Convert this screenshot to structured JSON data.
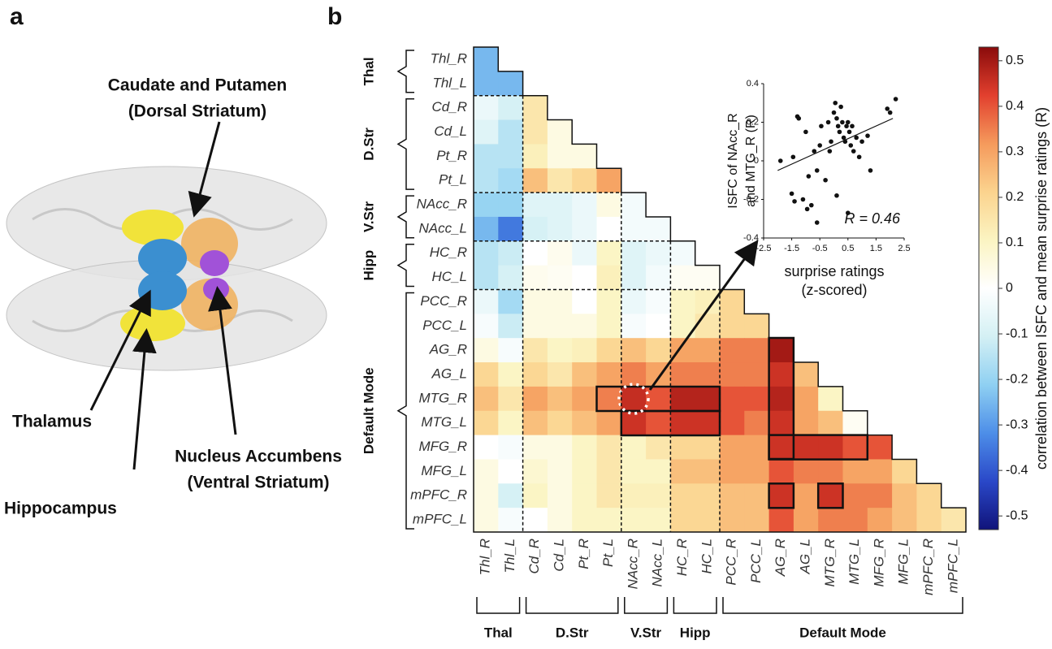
{
  "panel_labels": [
    "a",
    "b"
  ],
  "brain_labels": [
    "Caudate and Putamen",
    "(Dorsal Striatum)",
    "Thalamus",
    "Nucleus Accumbens",
    "(Ventral Striatum)",
    "Hippocampus"
  ],
  "chart_data": [
    {
      "type": "heatmap",
      "regions": [
        "Thl_R",
        "Thl_L",
        "Cd_R",
        "Cd_L",
        "Pt_R",
        "Pt_L",
        "NAcc_R",
        "NAcc_L",
        "HC_R",
        "HC_L",
        "PCC_R",
        "PCC_L",
        "AG_R",
        "AG_L",
        "MTG_R",
        "MTG_L",
        "MFG_R",
        "MFG_L",
        "mPFC_R",
        "mPFC_L"
      ],
      "groups": [
        {
          "name": "Thal",
          "count": 2
        },
        {
          "name": "D.Str",
          "count": 4
        },
        {
          "name": "V.Str",
          "count": 2
        },
        {
          "name": "Hipp",
          "count": 2
        },
        {
          "name": "Default Mode",
          "count": 10
        }
      ],
      "values": [
        [
          -0.25
        ],
        [
          -0.25,
          -0.25
        ],
        [
          -0.05,
          -0.1,
          0.15
        ],
        [
          -0.08,
          -0.15,
          0.15,
          0.05
        ],
        [
          -0.15,
          -0.15,
          0.12,
          0.05,
          0.05
        ],
        [
          -0.15,
          -0.18,
          0.25,
          0.15,
          0.2,
          0.3
        ],
        [
          -0.2,
          -0.2,
          -0.08,
          -0.08,
          -0.05,
          0.05,
          -0.03
        ],
        [
          -0.25,
          -0.35,
          -0.1,
          -0.08,
          -0.05,
          0,
          -0.03,
          -0.03
        ],
        [
          -0.15,
          -0.12,
          0,
          0.03,
          -0.05,
          0.1,
          -0.08,
          -0.05,
          -0.03
        ],
        [
          -0.15,
          -0.1,
          0.03,
          0.02,
          0,
          0.12,
          -0.08,
          -0.03,
          0.02,
          0.02
        ],
        [
          -0.05,
          -0.18,
          0.05,
          0.05,
          0,
          0.1,
          -0.05,
          -0.02,
          0.1,
          0.12,
          0.2
        ],
        [
          -0.02,
          -0.12,
          0.05,
          0.05,
          0.05,
          0.1,
          -0.02,
          0,
          0.1,
          0.15,
          0.2,
          0.2
        ],
        [
          0.05,
          -0.02,
          0.15,
          0.1,
          0.12,
          0.2,
          0.25,
          0.2,
          0.3,
          0.3,
          0.35,
          0.35,
          0.5
        ],
        [
          0.2,
          0.1,
          0.2,
          0.15,
          0.25,
          0.3,
          0.35,
          0.3,
          0.35,
          0.35,
          0.35,
          0.35,
          0.45,
          0.25
        ],
        [
          0.25,
          0.15,
          0.3,
          0.25,
          0.3,
          0.35,
          0.46,
          0.4,
          0.48,
          0.48,
          0.4,
          0.4,
          0.48,
          0.3,
          0.1
        ],
        [
          0.2,
          0.1,
          0.25,
          0.2,
          0.25,
          0.3,
          0.45,
          0.4,
          0.45,
          0.45,
          0.4,
          0.35,
          0.45,
          0.3,
          0.25,
          0.02
        ],
        [
          0,
          -0.02,
          0.05,
          0.05,
          0.1,
          0.15,
          0.1,
          0.15,
          0.2,
          0.2,
          0.3,
          0.3,
          0.45,
          0.45,
          0.45,
          0.4,
          0.4
        ],
        [
          0.05,
          0,
          0.08,
          0.05,
          0.1,
          0.15,
          0.1,
          0.1,
          0.25,
          0.25,
          0.3,
          0.3,
          0.4,
          0.35,
          0.35,
          0.3,
          0.3,
          0.2
        ],
        [
          0.05,
          -0.1,
          0.1,
          0.05,
          0.1,
          0.15,
          0.12,
          0.12,
          0.2,
          0.2,
          0.25,
          0.25,
          0.45,
          0.3,
          0.45,
          0.35,
          0.35,
          0.25,
          0.2
        ],
        [
          0.05,
          -0.02,
          0,
          0.05,
          0.1,
          0.1,
          0.1,
          0.1,
          0.2,
          0.2,
          0.25,
          0.25,
          0.4,
          0.3,
          0.35,
          0.35,
          0.3,
          0.25,
          0.2,
          0.15
        ]
      ],
      "colormap": [
        "#10137a",
        "#2a48c8",
        "#4d8ee8",
        "#8fd0f2",
        "#d4f0f4",
        "#ffffff",
        "#fbf4c2",
        "#fbd38e",
        "#f59a5c",
        "#e2402e",
        "#8a0b0b"
      ],
      "clim": [
        -0.53,
        0.53
      ],
      "cticks": [
        0.5,
        0.4,
        0.3,
        0.2,
        0.1,
        0,
        -0.1,
        -0.2,
        -0.3,
        -0.4,
        -0.5
      ],
      "colorbar_label": "correlation between ISFC and mean surprise ratings (R)"
    },
    {
      "type": "scatter",
      "x": [
        -1.9,
        -1.5,
        -1.3,
        -1.25,
        -1.45,
        -1.1,
        -1.0,
        -0.95,
        -0.8,
        -0.7,
        -0.6,
        -0.5,
        -0.45,
        -0.3,
        -0.2,
        -0.15,
        0.0,
        0.05,
        0.1,
        0.15,
        0.2,
        0.25,
        0.3,
        0.35,
        0.4,
        0.45,
        0.5,
        0.55,
        0.6,
        0.65,
        0.7,
        0.8,
        0.9,
        1.0,
        1.2,
        1.3,
        1.9,
        2.0,
        2.2,
        -1.4,
        -0.9,
        -0.6,
        0.1,
        0.5,
        -0.1
      ],
      "y": [
        0.0,
        -0.17,
        0.23,
        0.22,
        0.02,
        -0.2,
        0.15,
        -0.25,
        -0.23,
        0.05,
        -0.05,
        0.08,
        0.18,
        -0.1,
        0.2,
        0.05,
        0.25,
        0.3,
        0.22,
        0.18,
        0.15,
        0.28,
        0.2,
        0.12,
        0.1,
        0.18,
        0.2,
        0.15,
        0.08,
        0.18,
        0.05,
        0.12,
        0.02,
        0.1,
        0.13,
        -0.05,
        0.27,
        0.25,
        0.32,
        -0.21,
        -0.08,
        -0.32,
        -0.18,
        -0.27,
        0.1
      ],
      "color": "#111111",
      "fit": {
        "x": [
          -2,
          2.1
        ],
        "y": [
          -0.05,
          0.22
        ]
      },
      "xlim": [
        -2.5,
        2.5
      ],
      "ylim": [
        -0.4,
        0.4
      ],
      "xticks": [
        -2.5,
        -1.5,
        -0.5,
        0.5,
        1.5,
        2.5
      ],
      "yticks": [
        -0.4,
        -0.2,
        0,
        0.2,
        0.4
      ],
      "ylabel": [
        "ISFC of NAcc_R",
        "and MTG_R (R)"
      ],
      "xlabel": [
        "surprise ratings",
        "(z-scored)"
      ],
      "annotation": "R = 0.46"
    }
  ]
}
